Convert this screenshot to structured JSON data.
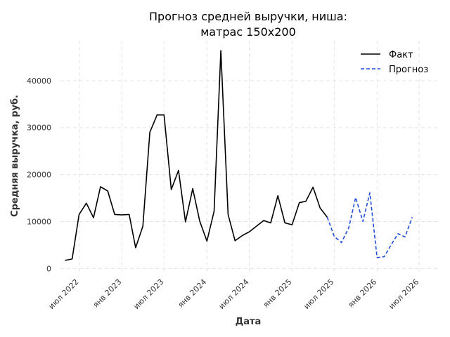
{
  "chart_data": {
    "type": "line",
    "title_lines": [
      "Прогноз средней выручки, ниша:",
      "матрас 150х200"
    ],
    "xlabel": "Дата",
    "ylabel": "Средняя выручка, руб.",
    "xlim": [
      "2022-04-12",
      "2026-09-26"
    ],
    "ylim": [
      -1000,
      48500
    ],
    "y_ticks": [
      0,
      10000,
      20000,
      30000,
      40000
    ],
    "x_ticks": [
      {
        "date": "2022-07-01",
        "label": "июл 2022"
      },
      {
        "date": "2023-01-01",
        "label": "янв 2023"
      },
      {
        "date": "2023-07-01",
        "label": "июл 2023"
      },
      {
        "date": "2024-01-01",
        "label": "янв 2024"
      },
      {
        "date": "2024-07-01",
        "label": "июл 2024"
      },
      {
        "date": "2025-01-01",
        "label": "янв 2025"
      },
      {
        "date": "2025-07-01",
        "label": "июл 2025"
      },
      {
        "date": "2026-01-01",
        "label": "янв 2026"
      },
      {
        "date": "2026-07-01",
        "label": "июл 2026"
      }
    ],
    "grid": true,
    "legend_position": "top-right",
    "series": [
      {
        "name": "Факт",
        "color": "#000000",
        "style": "solid",
        "points": [
          [
            "2022-05-01",
            1700
          ],
          [
            "2022-06-01",
            2000
          ],
          [
            "2022-07-01",
            11500
          ],
          [
            "2022-08-01",
            13900
          ],
          [
            "2022-09-01",
            10800
          ],
          [
            "2022-10-01",
            17400
          ],
          [
            "2022-11-01",
            16500
          ],
          [
            "2022-12-01",
            11500
          ],
          [
            "2023-01-01",
            11400
          ],
          [
            "2023-02-01",
            11500
          ],
          [
            "2023-03-01",
            4400
          ],
          [
            "2023-04-01",
            9000
          ],
          [
            "2023-05-01",
            29000
          ],
          [
            "2023-06-01",
            32700
          ],
          [
            "2023-07-01",
            32700
          ],
          [
            "2023-08-01",
            16800
          ],
          [
            "2023-09-01",
            20900
          ],
          [
            "2023-10-01",
            9900
          ],
          [
            "2023-11-01",
            17000
          ],
          [
            "2023-12-01",
            10100
          ],
          [
            "2024-01-01",
            5800
          ],
          [
            "2024-02-01",
            12200
          ],
          [
            "2024-03-01",
            46400
          ],
          [
            "2024-04-01",
            11500
          ],
          [
            "2024-05-01",
            5900
          ],
          [
            "2024-06-01",
            7000
          ],
          [
            "2024-07-01",
            7800
          ],
          [
            "2024-08-01",
            9000
          ],
          [
            "2024-09-01",
            10200
          ],
          [
            "2024-10-01",
            9700
          ],
          [
            "2024-11-01",
            15500
          ],
          [
            "2024-12-01",
            9700
          ],
          [
            "2025-01-01",
            9300
          ],
          [
            "2025-02-01",
            14000
          ],
          [
            "2025-03-01",
            14300
          ],
          [
            "2025-04-01",
            17300
          ],
          [
            "2025-05-01",
            12900
          ],
          [
            "2025-06-01",
            10900
          ]
        ]
      },
      {
        "name": "Прогноз",
        "color": "#1f4fd8",
        "style": "dashed",
        "points": [
          [
            "2025-06-01",
            10900
          ],
          [
            "2025-07-01",
            6800
          ],
          [
            "2025-08-01",
            5500
          ],
          [
            "2025-09-01",
            8600
          ],
          [
            "2025-10-01",
            15100
          ],
          [
            "2025-11-01",
            10000
          ],
          [
            "2025-12-01",
            16100
          ],
          [
            "2026-01-01",
            2300
          ],
          [
            "2026-02-01",
            2500
          ],
          [
            "2026-03-01",
            4900
          ],
          [
            "2026-04-01",
            7400
          ],
          [
            "2026-05-01",
            6700
          ],
          [
            "2026-06-01",
            10900
          ]
        ]
      }
    ]
  }
}
